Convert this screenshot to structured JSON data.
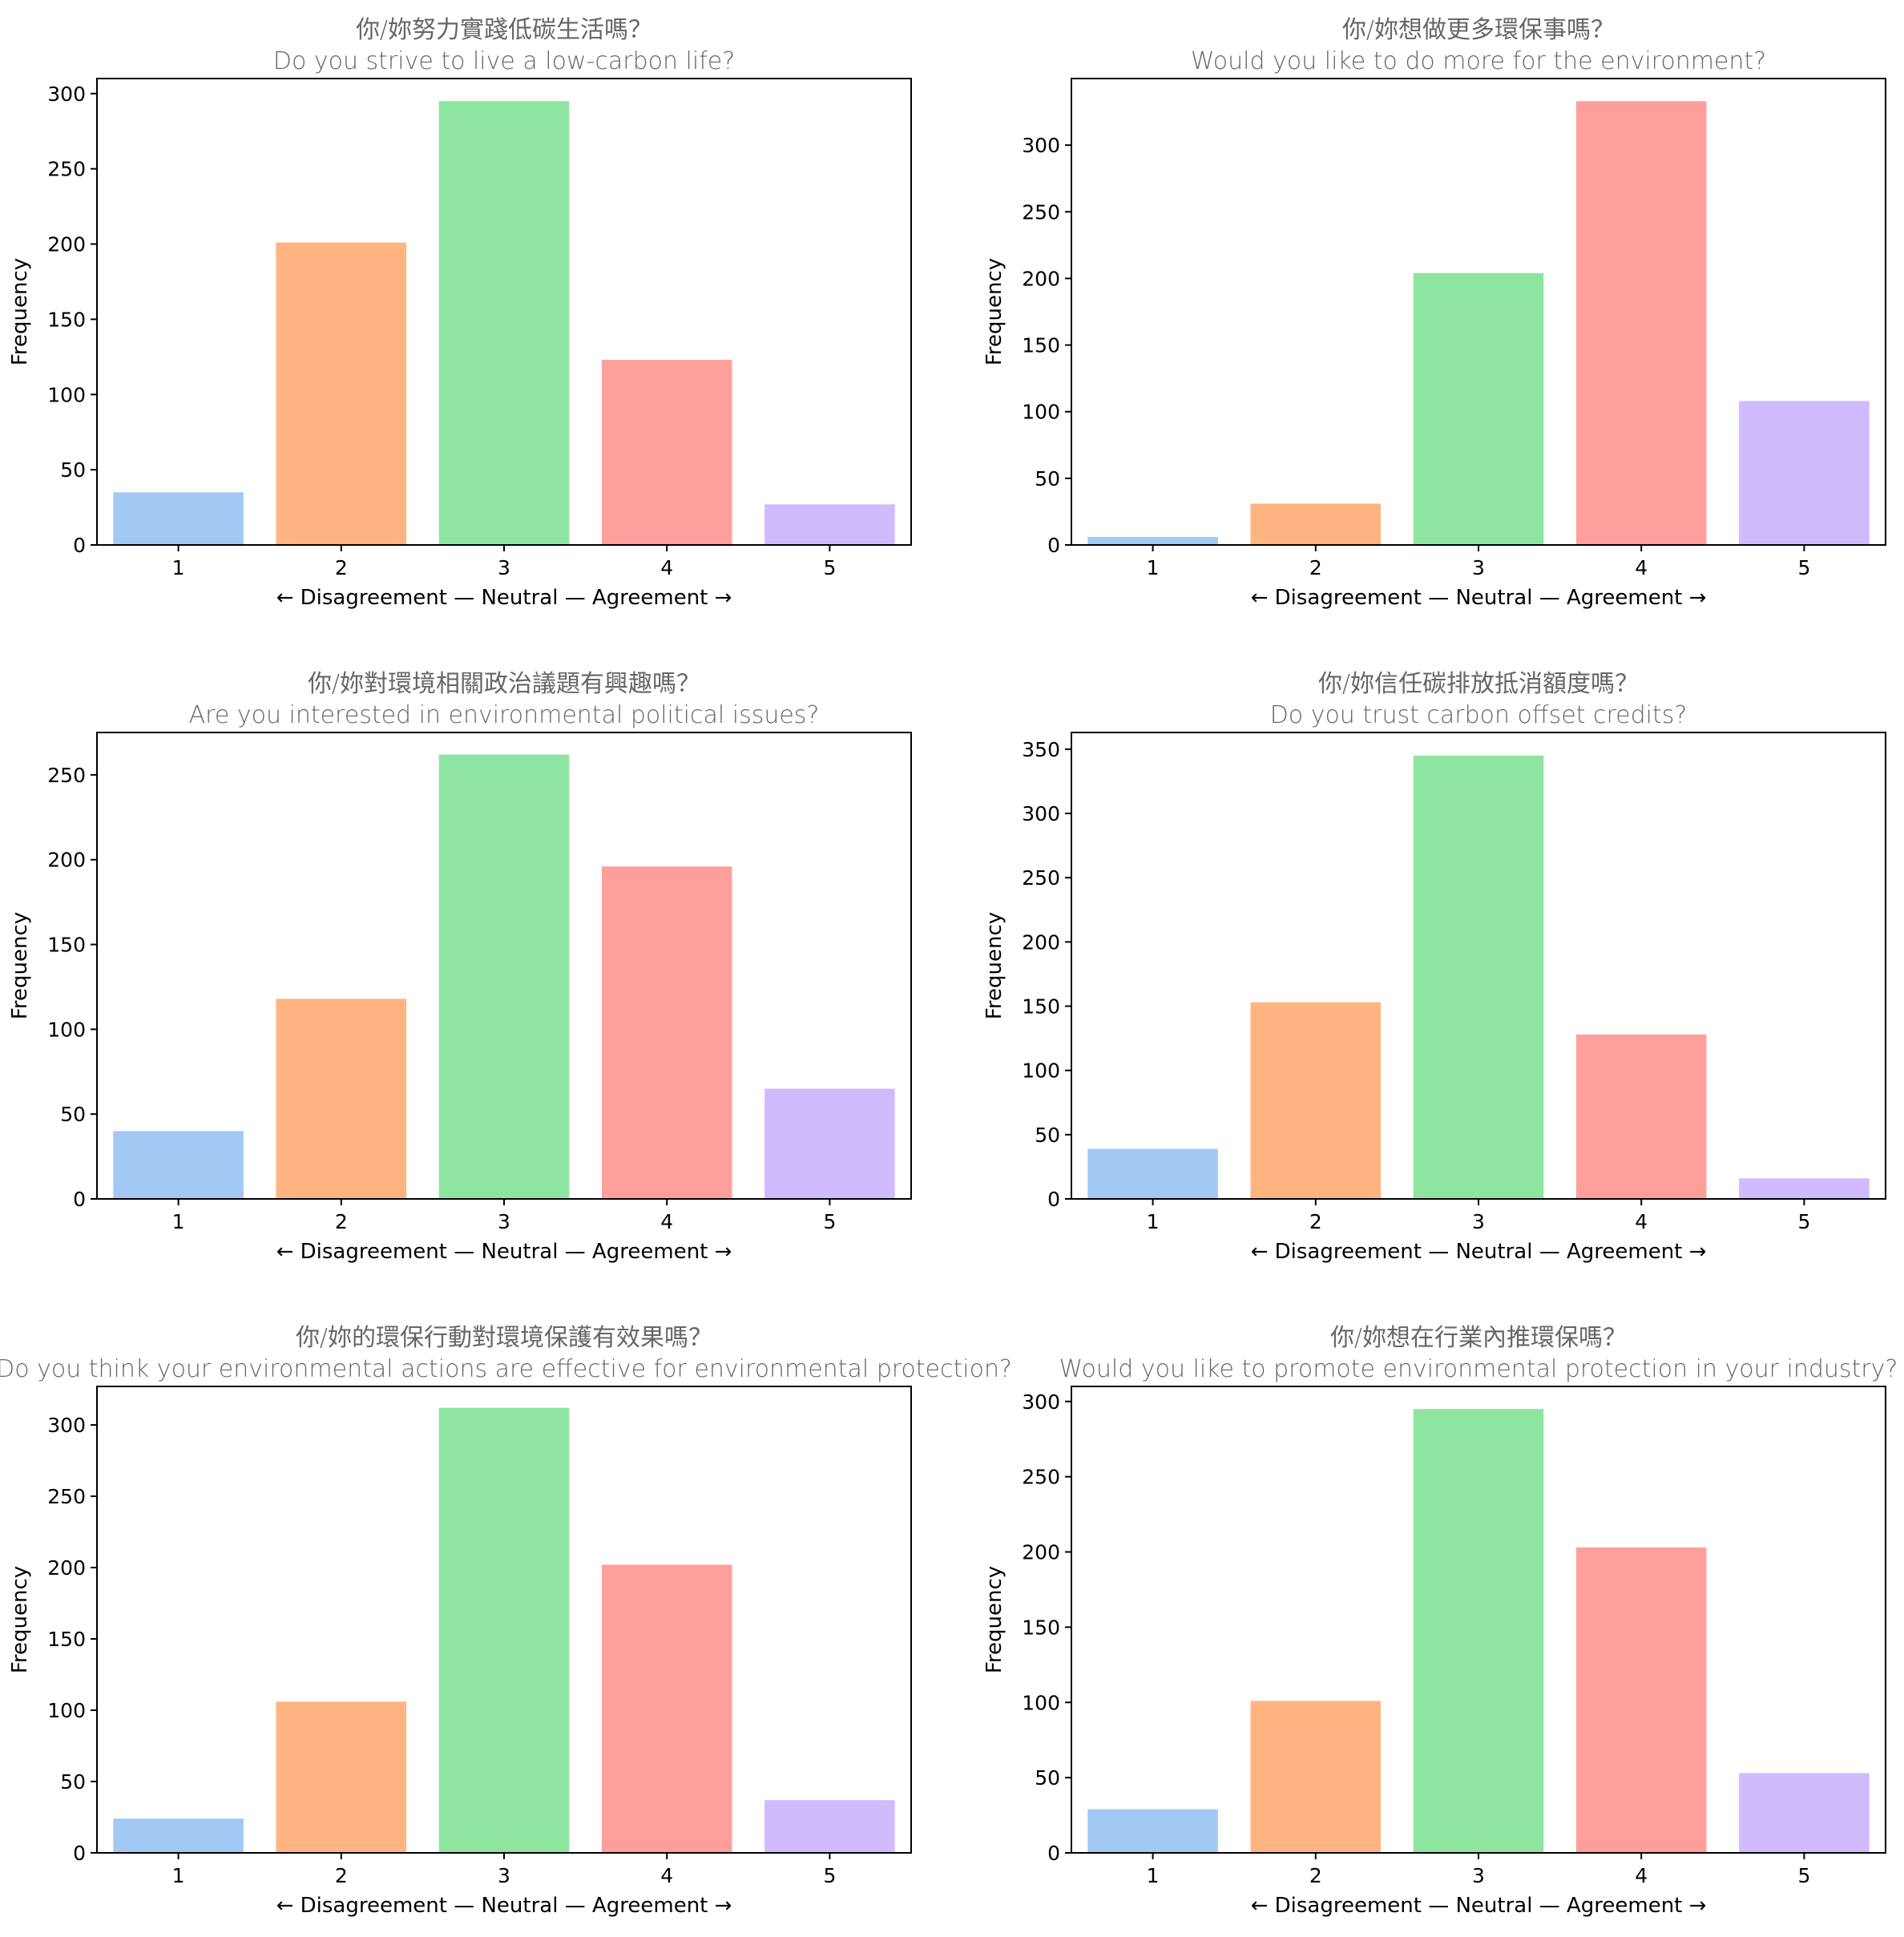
{
  "figure": {
    "shared_xlabel": "← Disagreement — Neutral — Agreement →",
    "shared_ylabel": "Frequency"
  },
  "chart_data": [
    {
      "type": "bar",
      "title": "你/妳努力實踐低碳生活嗎？",
      "subtitle": "Do you strive to live a low-carbon life?",
      "xlabel": "← Disagreement — Neutral — Agreement →",
      "ylabel": "Frequency",
      "categories": [
        "1",
        "2",
        "3",
        "4",
        "5"
      ],
      "values": [
        35,
        201,
        295,
        123,
        27
      ],
      "ylim": [
        0,
        310
      ],
      "yticks": [
        0,
        50,
        100,
        150,
        200,
        250,
        300
      ],
      "colors": [
        "#a1c9f4",
        "#ffb482",
        "#8de5a1",
        "#ff9f9b",
        "#d0bbff"
      ],
      "grid": false
    },
    {
      "type": "bar",
      "title": "你/妳想做更多環保事嗎？",
      "subtitle": "Would you like to do more for the environment?",
      "xlabel": "← Disagreement — Neutral — Agreement →",
      "ylabel": "Frequency",
      "categories": [
        "1",
        "2",
        "3",
        "4",
        "5"
      ],
      "values": [
        6,
        31,
        204,
        333,
        108
      ],
      "ylim": [
        0,
        350
      ],
      "yticks": [
        0,
        50,
        100,
        150,
        200,
        250,
        300
      ],
      "colors": [
        "#a1c9f4",
        "#ffb482",
        "#8de5a1",
        "#ff9f9b",
        "#d0bbff"
      ],
      "grid": false
    },
    {
      "type": "bar",
      "title": "你/妳對環境相關政治議題有興趣嗎？",
      "subtitle": "Are you interested in environmental political issues?",
      "xlabel": "← Disagreement — Neutral — Agreement →",
      "ylabel": "Frequency",
      "categories": [
        "1",
        "2",
        "3",
        "4",
        "5"
      ],
      "values": [
        40,
        118,
        262,
        196,
        65
      ],
      "ylim": [
        0,
        275
      ],
      "yticks": [
        0,
        50,
        100,
        150,
        200,
        250
      ],
      "colors": [
        "#a1c9f4",
        "#ffb482",
        "#8de5a1",
        "#ff9f9b",
        "#d0bbff"
      ],
      "grid": false
    },
    {
      "type": "bar",
      "title": "你/妳信任碳排放抵消額度嗎？",
      "subtitle": "Do you trust carbon offset credits?",
      "xlabel": "← Disagreement — Neutral — Agreement →",
      "ylabel": "Frequency",
      "categories": [
        "1",
        "2",
        "3",
        "4",
        "5"
      ],
      "values": [
        39,
        153,
        345,
        128,
        16
      ],
      "ylim": [
        0,
        363
      ],
      "yticks": [
        0,
        50,
        100,
        150,
        200,
        250,
        300,
        350
      ],
      "colors": [
        "#a1c9f4",
        "#ffb482",
        "#8de5a1",
        "#ff9f9b",
        "#d0bbff"
      ],
      "grid": false
    },
    {
      "type": "bar",
      "title": "你/妳的環保行動對環境保護有效果嗎？",
      "subtitle": "Do you think your environmental actions are effective for environmental protection?",
      "xlabel": "← Disagreement — Neutral — Agreement →",
      "ylabel": "Frequency",
      "categories": [
        "1",
        "2",
        "3",
        "4",
        "5"
      ],
      "values": [
        24,
        106,
        312,
        202,
        37
      ],
      "ylim": [
        0,
        327
      ],
      "yticks": [
        0,
        50,
        100,
        150,
        200,
        250,
        300
      ],
      "colors": [
        "#a1c9f4",
        "#ffb482",
        "#8de5a1",
        "#ff9f9b",
        "#d0bbff"
      ],
      "grid": false
    },
    {
      "type": "bar",
      "title": "你/妳想在行業內推環保嗎？",
      "subtitle": "Would you like to promote environmental protection in your industry?",
      "xlabel": "← Disagreement — Neutral — Agreement →",
      "ylabel": "Frequency",
      "categories": [
        "1",
        "2",
        "3",
        "4",
        "5"
      ],
      "values": [
        29,
        101,
        295,
        203,
        53
      ],
      "ylim": [
        0,
        310
      ],
      "yticks": [
        0,
        50,
        100,
        150,
        200,
        250,
        300
      ],
      "colors": [
        "#a1c9f4",
        "#ffb482",
        "#8de5a1",
        "#ff9f9b",
        "#d0bbff"
      ],
      "grid": false
    }
  ]
}
